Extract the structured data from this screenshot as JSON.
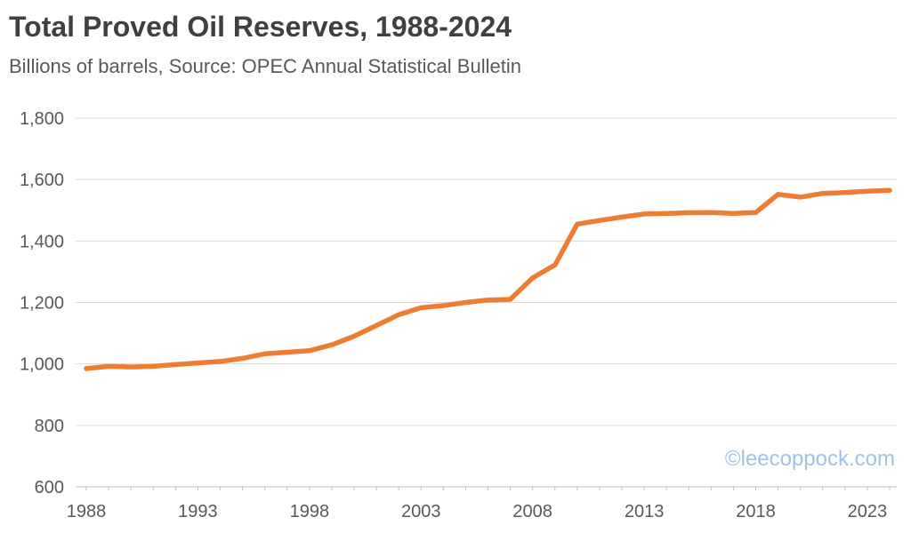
{
  "chart_data": {
    "type": "line",
    "title": "Total Proved Oil Reserves, 1988-2024",
    "subtitle": "Billions of barrels, Source: OPEC Annual Statistical Bulletin",
    "xlabel": "",
    "ylabel": "",
    "x": [
      1988,
      1989,
      1990,
      1991,
      1992,
      1993,
      1994,
      1995,
      1996,
      1997,
      1998,
      1999,
      2000,
      2001,
      2002,
      2003,
      2004,
      2005,
      2006,
      2007,
      2008,
      2009,
      2010,
      2011,
      2012,
      2013,
      2014,
      2015,
      2016,
      2017,
      2018,
      2019,
      2020,
      2021,
      2022,
      2023,
      2024
    ],
    "series": [
      {
        "name": "Total proved oil reserves",
        "values": [
          985,
          992,
          990,
          992,
          998,
          1003,
          1008,
          1018,
          1033,
          1038,
          1043,
          1062,
          1090,
          1125,
          1160,
          1183,
          1190,
          1200,
          1208,
          1210,
          1280,
          1322,
          1455,
          1467,
          1478,
          1488,
          1490,
          1492,
          1493,
          1490,
          1493,
          1552,
          1543,
          1555,
          1558,
          1562,
          1565
        ]
      }
    ],
    "ylim": [
      600,
      1800
    ],
    "ytick_step": 200,
    "yticks": [
      "600",
      "800",
      "1,000",
      "1,200",
      "1,400",
      "1,600",
      "1,800"
    ],
    "xticks": [
      1988,
      1993,
      1998,
      2003,
      2008,
      2013,
      2018,
      2023
    ],
    "grid": "horizontal",
    "legend": "none",
    "line_color": "#ED7D31"
  },
  "watermark": {
    "text": "©leecoppock.com"
  },
  "colors": {
    "title": "#404040",
    "subtitle": "#595959",
    "grid": "#D9D9D9",
    "axis": "#BFBFBF",
    "tick_label": "#595959",
    "watermark": "#9DC3E6"
  }
}
